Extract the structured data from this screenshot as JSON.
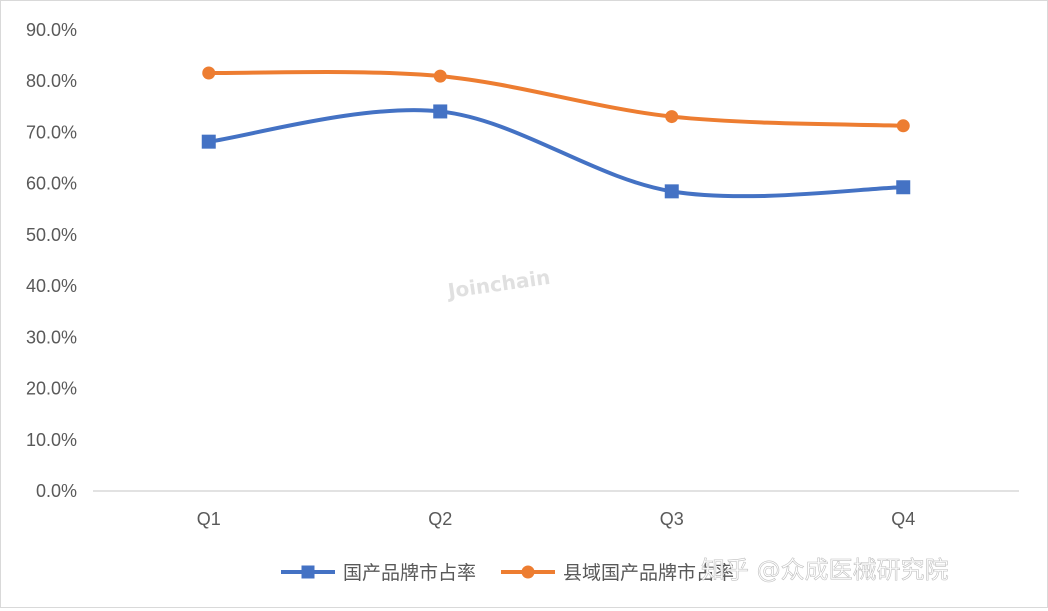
{
  "chart_data": {
    "type": "line",
    "title": "",
    "xlabel": "",
    "ylabel": "",
    "categories": [
      "Q1",
      "Q2",
      "Q3",
      "Q4"
    ],
    "ylim": [
      0,
      90
    ],
    "yticks": [
      "0.0%",
      "10.0%",
      "20.0%",
      "30.0%",
      "40.0%",
      "50.0%",
      "60.0%",
      "70.0%",
      "80.0%",
      "90.0%"
    ],
    "grid": false,
    "legend_position": "bottom",
    "series": [
      {
        "name": "国产品牌市占率",
        "values": [
          68.2,
          74.1,
          58.5,
          59.3
        ],
        "color": "#4472c4",
        "marker": "square",
        "smooth": true
      },
      {
        "name": "县域国产品牌市占率",
        "values": [
          81.6,
          81.0,
          73.1,
          71.3
        ],
        "color": "#ed7d31",
        "marker": "circle",
        "smooth": true
      }
    ]
  },
  "watermarks": {
    "center": "Joinchain",
    "corner": "知乎 @众成医械研究院"
  }
}
